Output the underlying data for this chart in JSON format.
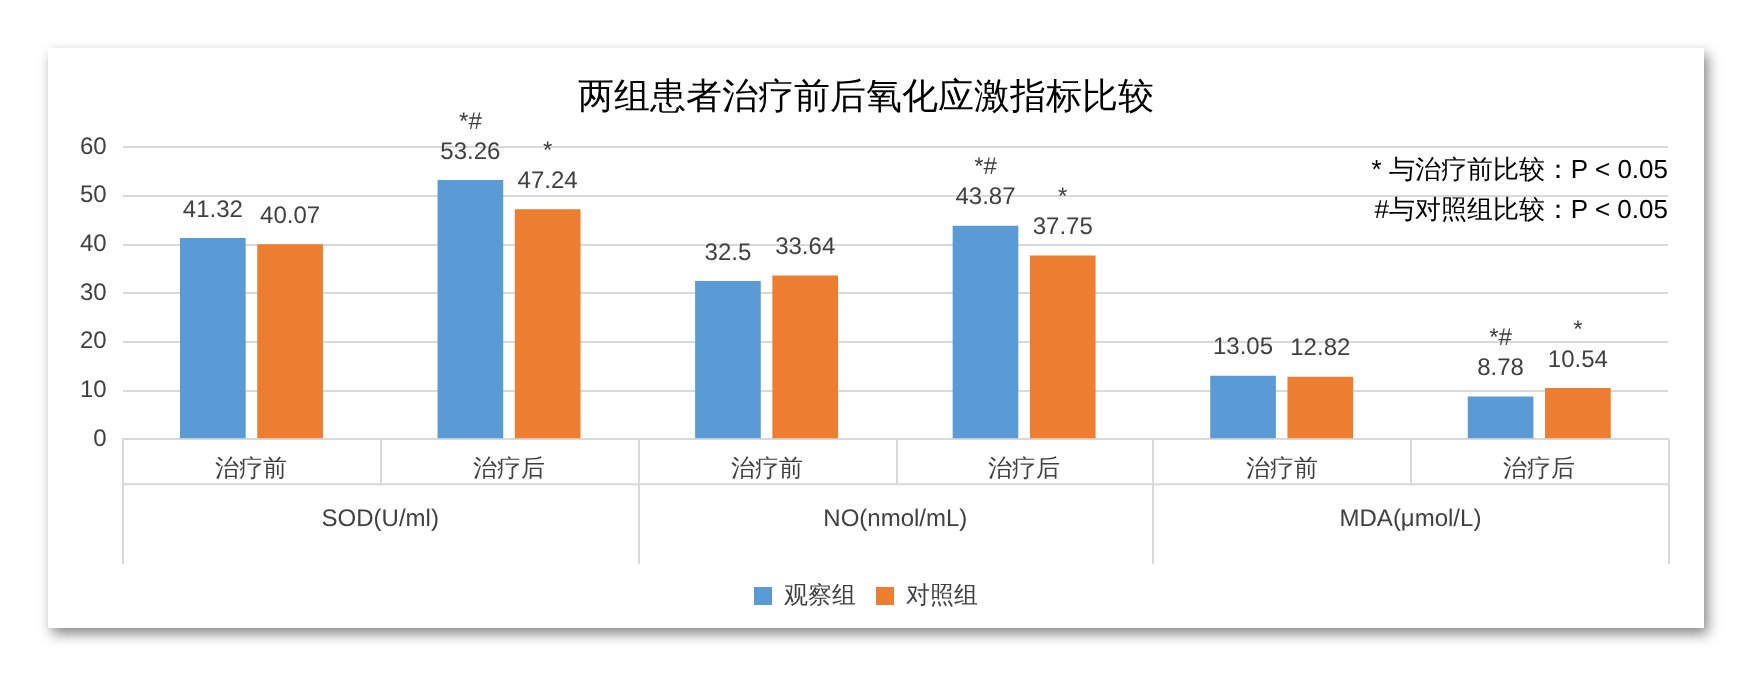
{
  "chart_data": {
    "type": "bar",
    "title": "两组患者治疗前后氧化应激指标比较",
    "categories": [
      "治疗前",
      "治疗后",
      "治疗前",
      "治疗后",
      "治疗前",
      "治疗后"
    ],
    "series": [
      {
        "name": "观察组",
        "color": "#5b9bd5",
        "values": [
          41.32,
          53.26,
          32.5,
          43.87,
          13.05,
          8.78
        ],
        "value_labels": [
          "41.32",
          "*#\n53.26",
          "32.5",
          "*#\n43.87",
          "13.05",
          "*#\n8.78"
        ]
      },
      {
        "name": "对照组",
        "color": "#ed7d31",
        "values": [
          40.07,
          47.24,
          33.64,
          37.75,
          12.82,
          10.54
        ],
        "value_labels": [
          "40.07",
          "*\n47.24",
          "33.64",
          "*\n37.75",
          "12.82",
          "*\n10.54"
        ]
      }
    ],
    "ylim": [
      0,
      60
    ],
    "yticks": [
      0,
      10,
      20,
      30,
      40,
      50,
      60
    ],
    "grid": "y",
    "legend": "bottom",
    "annotations": [
      "SOD(U/ml)",
      "NO(nmol/mL)",
      "MDA(μmol/L)",
      "* 与治疗前比较：P < 0.05",
      "#与对照组比较：P < 0.05"
    ]
  }
}
